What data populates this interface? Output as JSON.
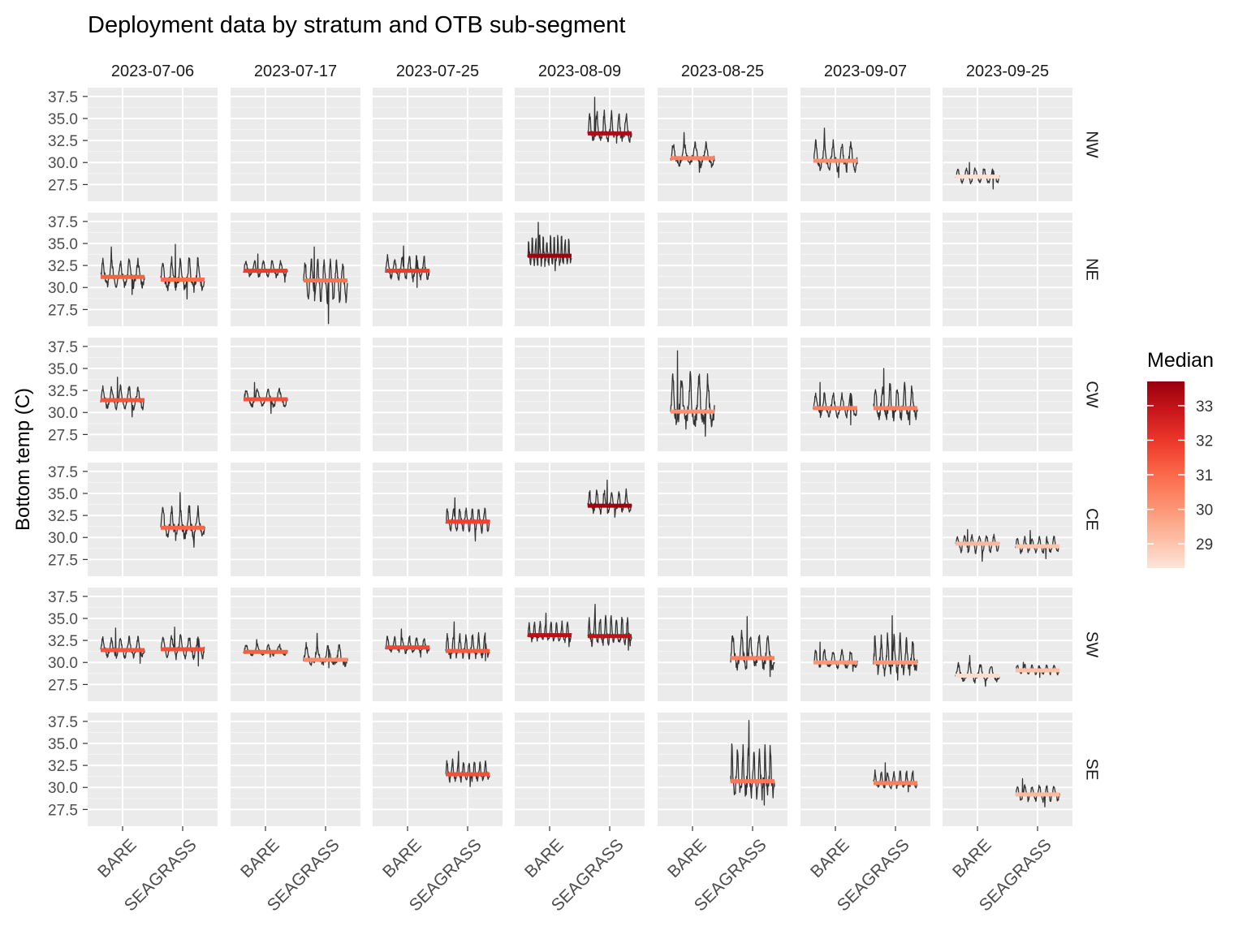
{
  "chart_data": {
    "type": "line",
    "title": "Deployment data by stratum and OTB sub-segment",
    "ylabel": "Bottom temp (C)",
    "xlabel": "",
    "columns": [
      "2023-07-06",
      "2023-07-17",
      "2023-07-25",
      "2023-08-09",
      "2023-08-25",
      "2023-09-07",
      "2023-09-25"
    ],
    "rows": [
      "NW",
      "NE",
      "CW",
      "CE",
      "SW",
      "SE"
    ],
    "categories": [
      "BARE",
      "SEAGRASS"
    ],
    "y_ticks": [
      27.5,
      30.0,
      32.5,
      35.0,
      37.5
    ],
    "y_tick_labels": [
      "27.5",
      "30.0",
      "32.5",
      "35.0",
      "37.5"
    ],
    "ylim": [
      25.6,
      38.5
    ],
    "grid": true,
    "legend": {
      "title": "Median",
      "position": "right",
      "ticks": [
        29,
        30,
        31,
        32,
        33
      ],
      "tick_labels": [
        "29",
        "30",
        "31",
        "32",
        "33"
      ],
      "range": [
        28.3,
        33.7
      ],
      "colors": [
        "#fee5d9",
        "#fcbba1",
        "#fc9272",
        "#fb6a4a",
        "#ef3b2c",
        "#cb181d",
        "#99000d"
      ]
    },
    "colors": {
      "line": "#333333",
      "panel": "#ebebeb",
      "grid_major": "#ffffff",
      "strip": "#ffffff"
    },
    "series": [
      {
        "row": "NW",
        "col": "2023-08-09",
        "category": "SEAGRASS",
        "median": 33.3,
        "min": 32.2,
        "max": 37.4,
        "spikes": 6
      },
      {
        "row": "NW",
        "col": "2023-08-25",
        "category": "BARE",
        "median": 30.5,
        "min": 28.9,
        "max": 33.4,
        "spikes": 4
      },
      {
        "row": "NW",
        "col": "2023-09-07",
        "category": "BARE",
        "median": 30.2,
        "min": 28.3,
        "max": 33.9,
        "spikes": 5
      },
      {
        "row": "NW",
        "col": "2023-09-25",
        "category": "BARE",
        "median": 28.4,
        "min": 27.0,
        "max": 30.0,
        "spikes": 5
      },
      {
        "row": "NE",
        "col": "2023-07-06",
        "category": "BARE",
        "median": 31.2,
        "min": 29.2,
        "max": 34.6,
        "spikes": 5
      },
      {
        "row": "NE",
        "col": "2023-07-06",
        "category": "SEAGRASS",
        "median": 30.9,
        "min": 28.7,
        "max": 34.9,
        "spikes": 5
      },
      {
        "row": "NE",
        "col": "2023-07-17",
        "category": "BARE",
        "median": 31.9,
        "min": 30.6,
        "max": 33.8,
        "spikes": 5
      },
      {
        "row": "NE",
        "col": "2023-07-17",
        "category": "SEAGRASS",
        "median": 30.8,
        "min": 25.9,
        "max": 34.6,
        "spikes": 7
      },
      {
        "row": "NE",
        "col": "2023-07-25",
        "category": "BARE",
        "median": 31.9,
        "min": 30.0,
        "max": 34.7,
        "spikes": 6
      },
      {
        "row": "NE",
        "col": "2023-08-09",
        "category": "BARE",
        "median": 33.6,
        "min": 31.9,
        "max": 37.4,
        "spikes": 12
      },
      {
        "row": "CW",
        "col": "2023-07-06",
        "category": "BARE",
        "median": 31.4,
        "min": 29.5,
        "max": 34.0,
        "spikes": 5
      },
      {
        "row": "CW",
        "col": "2023-07-17",
        "category": "BARE",
        "median": 31.5,
        "min": 29.9,
        "max": 33.4,
        "spikes": 4
      },
      {
        "row": "CW",
        "col": "2023-08-25",
        "category": "BARE",
        "median": 30.1,
        "min": 27.3,
        "max": 37.0,
        "spikes": 5
      },
      {
        "row": "CW",
        "col": "2023-09-07",
        "category": "BARE",
        "median": 30.5,
        "min": 28.6,
        "max": 33.4,
        "spikes": 5
      },
      {
        "row": "CW",
        "col": "2023-09-07",
        "category": "SEAGRASS",
        "median": 30.5,
        "min": 28.6,
        "max": 35.0,
        "spikes": 6
      },
      {
        "row": "CE",
        "col": "2023-07-06",
        "category": "SEAGRASS",
        "median": 31.1,
        "min": 28.9,
        "max": 35.1,
        "spikes": 5
      },
      {
        "row": "CE",
        "col": "2023-07-25",
        "category": "SEAGRASS",
        "median": 31.8,
        "min": 29.6,
        "max": 34.5,
        "spikes": 7
      },
      {
        "row": "CE",
        "col": "2023-08-09",
        "category": "SEAGRASS",
        "median": 33.6,
        "min": 32.3,
        "max": 36.5,
        "spikes": 6
      },
      {
        "row": "CE",
        "col": "2023-09-25",
        "category": "BARE",
        "median": 29.3,
        "min": 27.3,
        "max": 30.9,
        "spikes": 6
      },
      {
        "row": "CE",
        "col": "2023-09-25",
        "category": "SEAGRASS",
        "median": 29.0,
        "min": 27.6,
        "max": 30.8,
        "spikes": 6
      },
      {
        "row": "SW",
        "col": "2023-07-06",
        "category": "BARE",
        "median": 31.4,
        "min": 29.9,
        "max": 33.9,
        "spikes": 5
      },
      {
        "row": "SW",
        "col": "2023-07-06",
        "category": "SEAGRASS",
        "median": 31.5,
        "min": 29.6,
        "max": 34.0,
        "spikes": 5
      },
      {
        "row": "SW",
        "col": "2023-07-17",
        "category": "BARE",
        "median": 31.2,
        "min": 30.6,
        "max": 32.6,
        "spikes": 4
      },
      {
        "row": "SW",
        "col": "2023-07-17",
        "category": "SEAGRASS",
        "median": 30.3,
        "min": 29.4,
        "max": 33.3,
        "spikes": 4
      },
      {
        "row": "SW",
        "col": "2023-07-25",
        "category": "BARE",
        "median": 31.7,
        "min": 30.6,
        "max": 33.8,
        "spikes": 6
      },
      {
        "row": "SW",
        "col": "2023-07-25",
        "category": "SEAGRASS",
        "median": 31.3,
        "min": 30.2,
        "max": 34.6,
        "spikes": 7
      },
      {
        "row": "SW",
        "col": "2023-08-09",
        "category": "BARE",
        "median": 33.1,
        "min": 31.8,
        "max": 35.6,
        "spikes": 8
      },
      {
        "row": "SW",
        "col": "2023-08-09",
        "category": "SEAGRASS",
        "median": 33.0,
        "min": 31.4,
        "max": 36.6,
        "spikes": 8
      },
      {
        "row": "SW",
        "col": "2023-08-25",
        "category": "SEAGRASS",
        "median": 30.5,
        "min": 28.4,
        "max": 35.2,
        "spikes": 5
      },
      {
        "row": "SW",
        "col": "2023-09-07",
        "category": "BARE",
        "median": 30.0,
        "min": 29.0,
        "max": 32.3,
        "spikes": 5
      },
      {
        "row": "SW",
        "col": "2023-09-07",
        "category": "SEAGRASS",
        "median": 30.0,
        "min": 28.0,
        "max": 35.3,
        "spikes": 7
      },
      {
        "row": "SW",
        "col": "2023-09-25",
        "category": "BARE",
        "median": 28.5,
        "min": 27.3,
        "max": 30.8,
        "spikes": 4
      },
      {
        "row": "SW",
        "col": "2023-09-25",
        "category": "SEAGRASS",
        "median": 29.1,
        "min": 28.3,
        "max": 30.0,
        "spikes": 6
      },
      {
        "row": "SE",
        "col": "2023-07-25",
        "category": "SEAGRASS",
        "median": 31.5,
        "min": 30.1,
        "max": 34.1,
        "spikes": 8
      },
      {
        "row": "SE",
        "col": "2023-08-25",
        "category": "SEAGRASS",
        "median": 30.7,
        "min": 28.0,
        "max": 37.6,
        "spikes": 8
      },
      {
        "row": "SE",
        "col": "2023-09-07",
        "category": "SEAGRASS",
        "median": 30.5,
        "min": 29.5,
        "max": 32.8,
        "spikes": 7
      },
      {
        "row": "SE",
        "col": "2023-09-25",
        "category": "SEAGRASS",
        "median": 29.2,
        "min": 27.8,
        "max": 31.0,
        "spikes": 6
      }
    ]
  }
}
